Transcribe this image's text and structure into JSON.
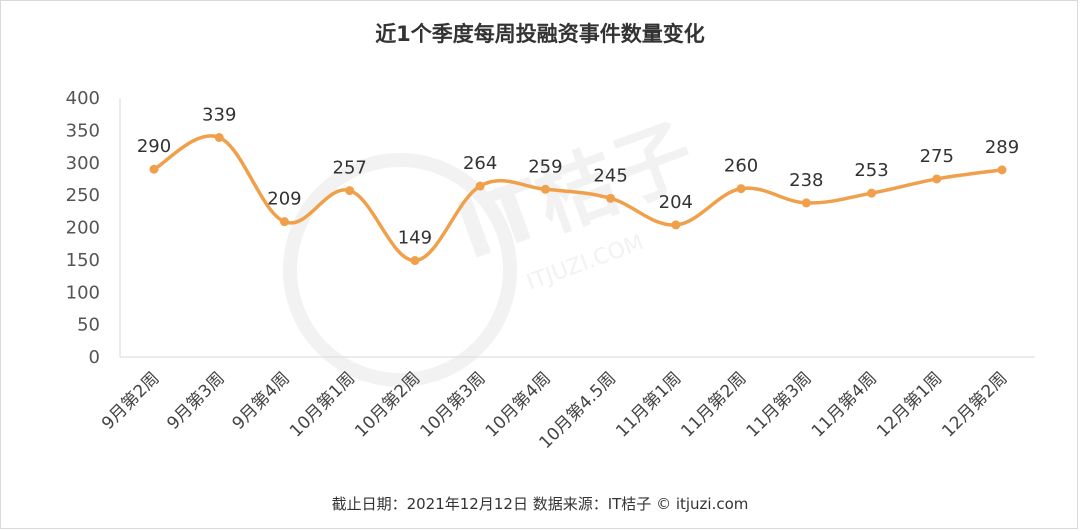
{
  "chart_data": {
    "type": "line",
    "title": "近1个季度每周投融资事件数量变化",
    "categories": [
      "9月第2周",
      "9月第3周",
      "9月第4周",
      "10月第1周",
      "10月第2周",
      "10月第3周",
      "10月第4周",
      "10月第4.5周",
      "11月第1周",
      "11月第2周",
      "11月第3周",
      "11月第4周",
      "12月第1周",
      "12月第2周"
    ],
    "values": [
      290,
      339,
      209,
      257,
      149,
      264,
      259,
      245,
      204,
      260,
      238,
      253,
      275,
      289
    ],
    "ylim": [
      0,
      400
    ],
    "yticks": [
      0,
      50,
      100,
      150,
      200,
      250,
      300,
      350,
      400
    ],
    "grid": false,
    "legend": "none",
    "xlabel": "",
    "ylabel": ""
  },
  "footer": "截止日期：2021年12月12日    数据来源：IT桔子 © itjuzi.com",
  "watermark": {
    "main": "IT桔子",
    "sub": "ITJUZI.COM"
  },
  "colors": {
    "line": "#f0a04b",
    "axis": "#d9d9d9"
  }
}
